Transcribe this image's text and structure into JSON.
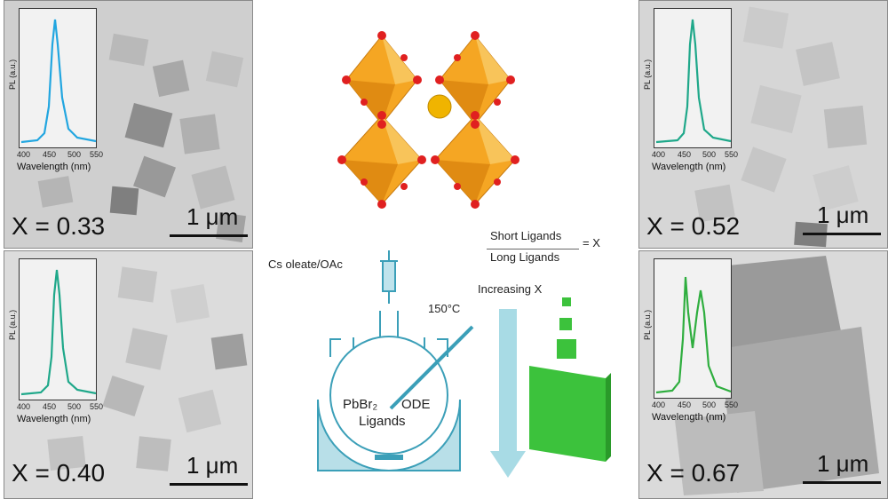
{
  "panels": [
    {
      "id": "tl",
      "x_label": "X = 0.33",
      "scale": "1 μm",
      "pl_axis": "PL (a.u.)",
      "wavelength_axis": "Wavelength (nm)",
      "ticks": [
        "400",
        "450",
        "500",
        "550"
      ],
      "curve_color": "#22a6e0"
    },
    {
      "id": "bl",
      "x_label": "X = 0.40",
      "scale": "1 μm",
      "pl_axis": "PL (a.u.)",
      "wavelength_axis": "Wavelength (nm)",
      "ticks": [
        "400",
        "450",
        "500",
        "550"
      ],
      "curve_color": "#1fa88a"
    },
    {
      "id": "tr",
      "x_label": "X = 0.52",
      "scale": "1 μm",
      "pl_axis": "PL (a.u.)",
      "wavelength_axis": "Wavelength (nm)",
      "ticks": [
        "400",
        "450",
        "500",
        "550"
      ],
      "curve_color": "#1fa88a"
    },
    {
      "id": "br",
      "x_label": "X = 0.67",
      "scale": "1 μm",
      "pl_axis": "PL (a.u.)",
      "wavelength_axis": "Wavelength (nm)",
      "ticks": [
        "400",
        "450",
        "500",
        "550"
      ],
      "curve_color": "#2fae3f"
    }
  ],
  "scheme": {
    "precursor_label": "Cs oleate/OAc",
    "temperature_label": "150°C",
    "flask_label_1": "PbBr₂",
    "flask_label_2": "ODE",
    "flask_label_3": "Ligands",
    "ratio_numerator": "Short Ligands",
    "ratio_denominator": "Long Ligands",
    "ratio_result": "= X",
    "arrow_label": "Increasing X"
  },
  "colors": {
    "octahedron": "#f5a623",
    "oxygen": "#e02020",
    "cation": "#f0b400",
    "flask": "#3b9fb8",
    "nanosheet": "#3cc23c"
  }
}
